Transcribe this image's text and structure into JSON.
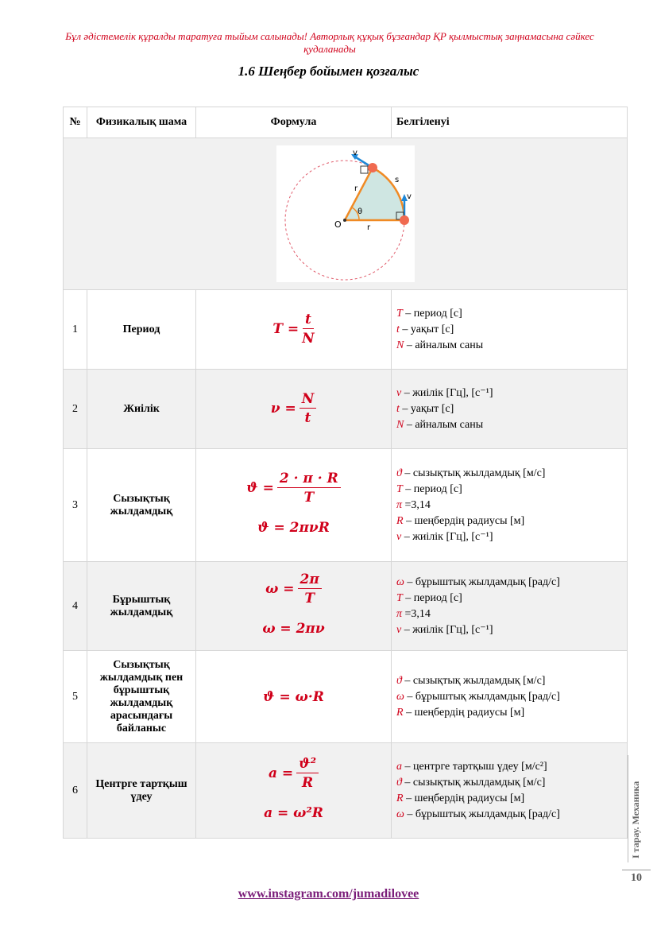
{
  "notice": "Бұл әдістемелік құралды таратуға тыйым салынады! Авторлық құқық бұзғандар ҚР қылмыстық заңнамасына сәйкес қудаланады",
  "title": "1.6 Шеңбер бойымен қозғалыс",
  "table": {
    "headers": [
      "№",
      "Физикалық шама",
      "Формула",
      "Белгіленуі"
    ],
    "diagram_labels": {
      "v_top": "v",
      "v_right": "v",
      "r1": "r",
      "r2": "r",
      "s": "s",
      "theta": "θ",
      "origin": "O"
    },
    "rows": [
      {
        "num": "1",
        "name": "Период",
        "formulas": [
          {
            "lhs": "T",
            "num": "t",
            "den": "N"
          }
        ],
        "legend": [
          {
            "sym": "T",
            "text": " – период [с]"
          },
          {
            "sym": "t",
            "text": " – уақыт [с]"
          },
          {
            "sym": "N",
            "text": " – айналым саны"
          }
        ]
      },
      {
        "num": "2",
        "name": "Жиілік",
        "formulas": [
          {
            "lhs": "ν",
            "num": "N",
            "den": "t"
          }
        ],
        "legend": [
          {
            "sym": "ν",
            "text": " – жиілік [Гц], [с⁻¹]"
          },
          {
            "sym": "t",
            "text": " – уақыт [с]"
          },
          {
            "sym": "N",
            "text": " – айналым саны"
          }
        ]
      },
      {
        "num": "3",
        "name": "Сызықтық жылдамдық",
        "formulas": [
          {
            "lhs": "ϑ",
            "num": "2 · π · R",
            "den": "T"
          },
          {
            "plain": "ϑ = 2πνR"
          }
        ],
        "legend": [
          {
            "sym": "ϑ",
            "text": " – сызықтық жылдамдық [м/с]"
          },
          {
            "sym": "T",
            "text": " – период [с]"
          },
          {
            "sym": "π",
            "text": " =3,14"
          },
          {
            "sym": "R",
            "text": " – шеңбердің радиусы [м]"
          },
          {
            "sym": "ν",
            "text": " – жиілік [Гц], [с⁻¹]"
          }
        ]
      },
      {
        "num": "4",
        "name": "Бұрыштық жылдамдық",
        "formulas": [
          {
            "lhs": "ω",
            "num": "2π",
            "den": "T"
          },
          {
            "plain": "ω = 2πν"
          }
        ],
        "legend": [
          {
            "sym": "ω",
            "text": " – бұрыштық жылдамдық [рад/с]"
          },
          {
            "sym": "T",
            "text": " – период [с]"
          },
          {
            "sym": "π",
            "text": " =3,14"
          },
          {
            "sym": "ν",
            "text": " – жиілік [Гц], [с⁻¹]"
          }
        ]
      },
      {
        "num": "5",
        "name": "Сызықтық жылдамдық пен бұрыштық жылдамдық арасындағы байланыс",
        "formulas": [
          {
            "plain": "ϑ = ω·R"
          }
        ],
        "legend": [
          {
            "sym": "ϑ",
            "text": " – сызықтық жылдамдық [м/с]"
          },
          {
            "sym": "ω",
            "text": " – бұрыштық жылдамдық [рад/с]"
          },
          {
            "sym": "R",
            "text": " – шеңбердің радиусы [м]"
          }
        ]
      },
      {
        "num": "6",
        "name": "Центрге тартқыш үдеу",
        "formulas": [
          {
            "lhs": "a",
            "num": "ϑ²",
            "den": "R"
          },
          {
            "plain": "a = ω²R"
          }
        ],
        "legend": [
          {
            "sym": "a",
            "text": " – центрге тартқыш үдеу [м/с²]"
          },
          {
            "sym": "ϑ",
            "text": " – сызықтық жылдамдық [м/с]"
          },
          {
            "sym": "R",
            "text": " – шеңбердің радиусы [м]"
          },
          {
            "sym": "ω",
            "text": " – бұрыштық жылдамдық [рад/с]"
          }
        ]
      }
    ]
  },
  "side_label": "I тарау. Механика",
  "page_number": "10",
  "footer_link": "www.instagram.com/jumadilovee",
  "colors": {
    "accent": "#d0001a",
    "link": "#7b1e7a",
    "diagram_sector": "#cfe6e2",
    "diagram_edge": "#f08a24",
    "velocity": "#1e88d8"
  }
}
